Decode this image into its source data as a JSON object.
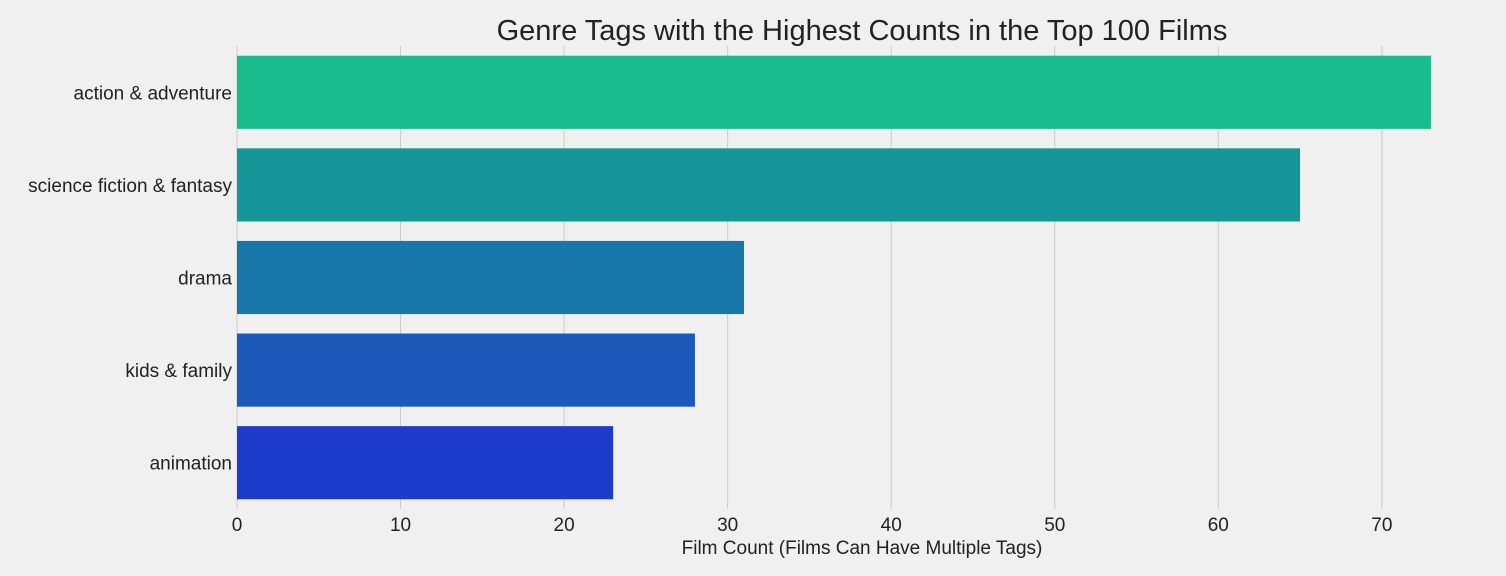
{
  "chart_data": {
    "type": "bar",
    "orientation": "horizontal",
    "title": "Genre Tags with the Highest Counts in the Top 100 Films",
    "xlabel": "Film Count (Films Can Have Multiple Tags)",
    "ylabel": "",
    "categories": [
      "action & adventure",
      "science fiction & fantasy",
      "drama",
      "kids & family",
      "animation"
    ],
    "values": [
      73,
      65,
      31,
      28,
      23
    ],
    "xlim": [
      0,
      76
    ],
    "xticks": [
      0,
      10,
      20,
      30,
      40,
      50,
      60,
      70
    ],
    "grid": "vertical",
    "colors": [
      "#1abc8b",
      "#169699",
      "#1a77aa",
      "#1c59bb",
      "#1e3ccc"
    ],
    "background": "#f0f0f0"
  }
}
